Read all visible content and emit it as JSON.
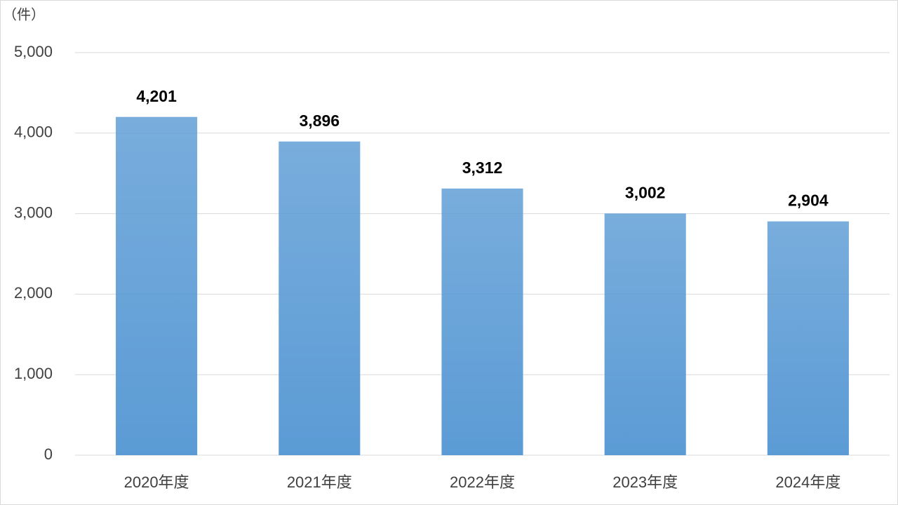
{
  "chart_data": {
    "type": "bar",
    "y_label": "（件）",
    "categories": [
      "2020年度",
      "2021年度",
      "2022年度",
      "2023年度",
      "2024年度"
    ],
    "values": [
      4201,
      3896,
      3312,
      3002,
      2904
    ],
    "value_labels": [
      "4,201",
      "3,896",
      "3,312",
      "3,002",
      "2,904"
    ],
    "color": "#5b9bd5",
    "ylim": [
      0,
      5000
    ],
    "yticks": [
      0,
      {
        "value": 1000,
        "label": "1,000"
      },
      {
        "value": 2000,
        "label": "2,000"
      },
      {
        "value": 3000,
        "label": "3,000"
      },
      {
        "value": 4000,
        "label": "4,000"
      },
      {
        "value": 5000,
        "label": "5,000"
      }
    ],
    "grid": true
  }
}
